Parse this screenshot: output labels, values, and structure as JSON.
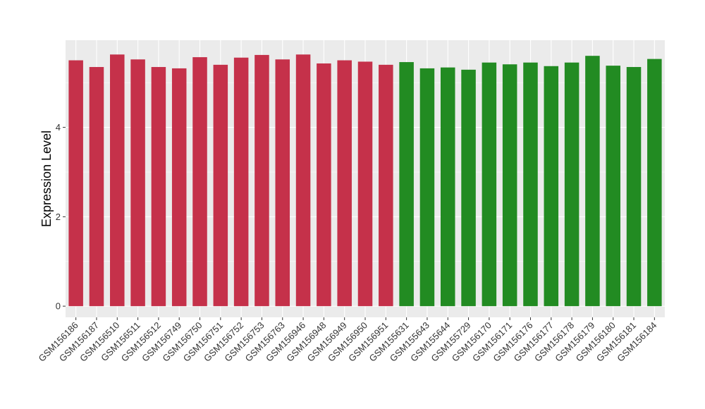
{
  "chart_data": {
    "type": "bar",
    "title": "",
    "xlabel": "",
    "ylabel": "Expression Level",
    "ylim": [
      -0.25,
      5.95
    ],
    "yticks": [
      0,
      2,
      4
    ],
    "grid": true,
    "legend": "none",
    "categories": [
      "GSM156186",
      "GSM156187",
      "GSM156510",
      "GSM156511",
      "GSM156512",
      "GSM156749",
      "GSM156750",
      "GSM156751",
      "GSM156752",
      "GSM156753",
      "GSM156763",
      "GSM156946",
      "GSM156948",
      "GSM156949",
      "GSM156950",
      "GSM156951",
      "GSM155631",
      "GSM155643",
      "GSM155644",
      "GSM155729",
      "GSM156170",
      "GSM156171",
      "GSM156176",
      "GSM156177",
      "GSM156178",
      "GSM156179",
      "GSM156180",
      "GSM156181",
      "GSM156184"
    ],
    "values": [
      5.5,
      5.35,
      5.63,
      5.52,
      5.35,
      5.32,
      5.57,
      5.4,
      5.56,
      5.62,
      5.52,
      5.63,
      5.43,
      5.5,
      5.47,
      5.4,
      5.46,
      5.32,
      5.34,
      5.29,
      5.45,
      5.41,
      5.45,
      5.37,
      5.45,
      5.6,
      5.38,
      5.35,
      5.53
    ],
    "groups": [
      1,
      1,
      1,
      1,
      1,
      1,
      1,
      1,
      1,
      1,
      1,
      1,
      1,
      1,
      1,
      1,
      2,
      2,
      2,
      2,
      2,
      2,
      2,
      2,
      2,
      2,
      2,
      2,
      2
    ],
    "group_colors": {
      "1": "#c5314a",
      "2": "#228b22"
    },
    "panel_background": "#ebebeb",
    "grid_color": "#ffffff"
  }
}
